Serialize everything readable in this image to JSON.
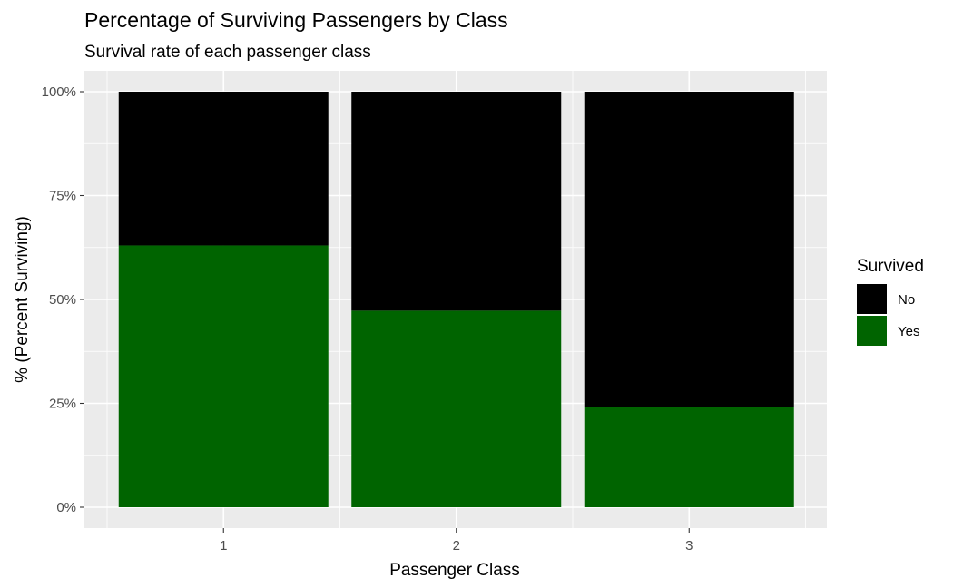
{
  "chart_data": {
    "type": "bar",
    "stacked": true,
    "position": "fill",
    "title": "Percentage of Surviving Passengers by Class",
    "subtitle": "Survival rate of each passenger class",
    "xlabel": "Passenger Class",
    "ylabel": "% (Percent Surviving)",
    "categories": [
      "1",
      "2",
      "3"
    ],
    "series": [
      {
        "name": "No",
        "color": "#000000",
        "values": [
          0.37,
          0.527,
          0.758
        ]
      },
      {
        "name": "Yes",
        "color": "#006400",
        "values": [
          0.63,
          0.473,
          0.242
        ]
      }
    ],
    "ylim": [
      0,
      1
    ],
    "yticks": [
      0,
      0.25,
      0.5,
      0.75,
      1
    ],
    "ytick_labels": [
      "0%",
      "25%",
      "50%",
      "75%",
      "100%"
    ],
    "grid": true,
    "legend": {
      "title": "Survived",
      "position": "right"
    }
  }
}
